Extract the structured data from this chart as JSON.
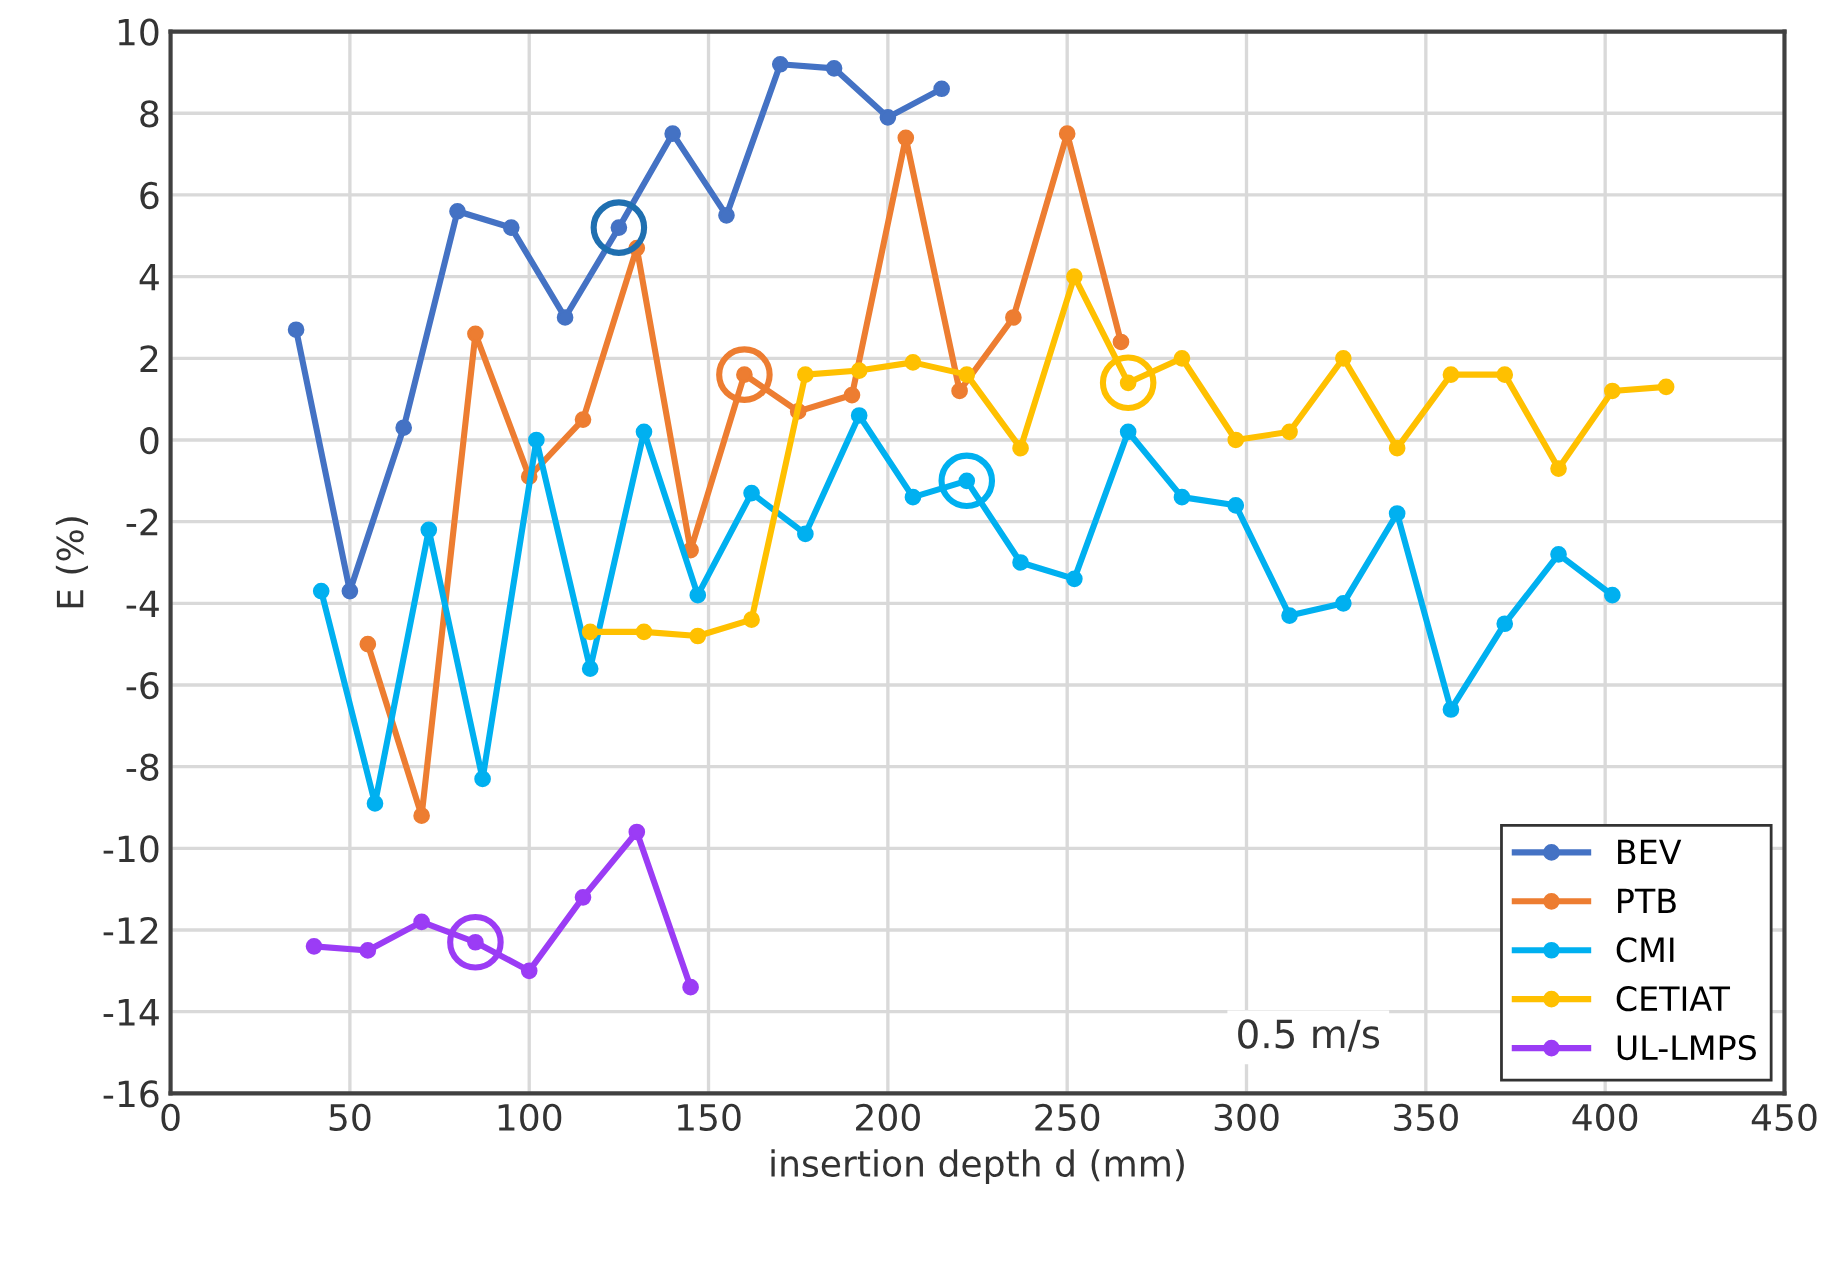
{
  "chart_data": {
    "type": "line",
    "xlabel": "insertion depth d (mm)",
    "ylabel": "E (%)",
    "xlim": [
      0,
      450
    ],
    "xticks": [
      0,
      50,
      100,
      150,
      200,
      250,
      300,
      350,
      400,
      450
    ],
    "ylim": [
      -16,
      10
    ],
    "yticks": [
      -16,
      -14,
      -12,
      -10,
      -8,
      -6,
      -4,
      -2,
      0,
      2,
      4,
      6,
      8,
      10
    ],
    "grid": true,
    "legend": "bottom right",
    "marker": "circle",
    "line_style": "solid",
    "annotations": [
      "0.5 m/s"
    ],
    "series": [
      {
        "name": "BEV",
        "color": "#4472c4",
        "x": [
          35,
          50,
          65,
          80,
          95,
          110,
          125,
          140,
          155,
          170,
          185,
          200,
          215
        ],
        "values": [
          2.7,
          -3.7,
          0.3,
          5.6,
          5.2,
          3.0,
          5.2,
          7.5,
          5.5,
          9.2,
          9.1,
          7.9,
          8.6
        ]
      },
      {
        "name": "PTB",
        "color": "#ed7d31",
        "x": [
          55,
          70,
          85,
          100,
          115,
          130,
          145,
          160,
          175,
          190,
          205,
          220,
          235,
          250,
          265
        ],
        "values": [
          -5.0,
          -9.2,
          2.6,
          -0.9,
          0.5,
          4.7,
          -2.7,
          1.6,
          0.7,
          1.1,
          7.4,
          1.2,
          3.0,
          7.5,
          2.4
        ]
      },
      {
        "name": "CMI",
        "color": "#00b0f0",
        "x": [
          42,
          57,
          72,
          87,
          102,
          117,
          132,
          147,
          162,
          177,
          192,
          207,
          222,
          237,
          252,
          267,
          282,
          297,
          312,
          327,
          342,
          357,
          372,
          387,
          402
        ],
        "values": [
          -3.7,
          -8.9,
          -2.2,
          -8.3,
          0.0,
          -5.6,
          0.2,
          -3.8,
          -1.3,
          -2.3,
          0.6,
          -1.4,
          -1.0,
          -3.0,
          -3.4,
          0.2,
          -1.4,
          -1.6,
          -4.3,
          -4.0,
          -1.8,
          -6.6,
          -4.5,
          -2.8,
          -3.8
        ]
      },
      {
        "name": "CETIAT",
        "color": "#ffc000",
        "x": [
          117,
          132,
          147,
          162,
          177,
          192,
          207,
          222,
          237,
          252,
          267,
          282,
          297,
          312,
          327,
          342,
          357,
          372,
          387,
          402,
          417
        ],
        "values": [
          -4.7,
          -4.7,
          -4.8,
          -4.4,
          1.6,
          1.7,
          1.9,
          1.6,
          -0.2,
          4.0,
          1.4,
          2.0,
          0.0,
          0.2,
          2.0,
          -0.2,
          1.6,
          1.6,
          -0.7,
          1.2,
          1.3
        ]
      },
      {
        "name": "UL-LMPS",
        "color": "#9b3cf5",
        "x": [
          40,
          55,
          70,
          85,
          100,
          115,
          130,
          145
        ],
        "values": [
          -12.4,
          -12.5,
          -11.8,
          -12.3,
          -13.0,
          -11.2,
          -9.6,
          -13.4
        ]
      },
      {
        "type": "scatter",
        "x": [
          125,
          160,
          222,
          267,
          85
        ],
        "values": [
          5.2,
          1.6,
          -1.0,
          1.4,
          -12.3
        ],
        "colors": [
          "#1f6fb0",
          "#ed7d31",
          "#00b0f0",
          "#ffc000",
          "#9b3cf5"
        ]
      }
    ]
  }
}
